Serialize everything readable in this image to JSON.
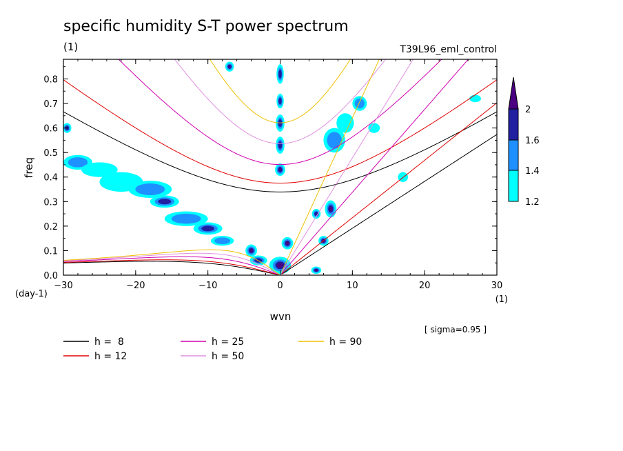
{
  "chart_data": {
    "type": "heatmap",
    "title": "specific humidity S-T power spectrum",
    "subtitle_left": "(1)",
    "subtitle_right": "T39L96_eml_control",
    "xlabel": "wvn",
    "ylabel": "freq",
    "x_unit_label": "(1)",
    "y_unit_label": "(day-1)",
    "annotation": "[ sigma=0.95 ]",
    "xlim": [
      -30,
      30
    ],
    "ylim": [
      0,
      0.88
    ],
    "x_ticks": [
      -30,
      -20,
      -10,
      0,
      10,
      20,
      30
    ],
    "y_ticks": [
      0.0,
      0.1,
      0.2,
      0.3,
      0.4,
      0.5,
      0.6,
      0.7,
      0.8
    ],
    "x_tick_labels": [
      "−30",
      "−20",
      "−10",
      "0",
      "10",
      "20",
      "30"
    ],
    "y_tick_labels": [
      "0.0",
      "0.1",
      "0.2",
      "0.3",
      "0.4",
      "0.5",
      "0.6",
      "0.7",
      "0.8"
    ],
    "colorbar": {
      "levels": [
        1.2,
        1.4,
        1.6,
        2
      ],
      "level_labels": [
        "1.2",
        "1.4",
        "1.6",
        "2"
      ],
      "colors": [
        "#00ffff",
        "#1e90ff",
        "#2020a0",
        "#4b0082"
      ]
    },
    "blobs": [
      {
        "x": -29.5,
        "y": 0.6,
        "rx": 0.6,
        "ry": 0.02,
        "level": 2
      },
      {
        "x": -28,
        "y": 0.46,
        "rx": 2.0,
        "ry": 0.03,
        "level": 1
      },
      {
        "x": -25,
        "y": 0.43,
        "rx": 2.5,
        "ry": 0.03,
        "level": 0
      },
      {
        "x": -22,
        "y": 0.38,
        "rx": 3.0,
        "ry": 0.04,
        "level": 0
      },
      {
        "x": -18,
        "y": 0.35,
        "rx": 3.0,
        "ry": 0.035,
        "level": 1
      },
      {
        "x": -16,
        "y": 0.3,
        "rx": 2.0,
        "ry": 0.025,
        "level": 2
      },
      {
        "x": -13,
        "y": 0.23,
        "rx": 3.0,
        "ry": 0.03,
        "level": 1
      },
      {
        "x": -10,
        "y": 0.19,
        "rx": 2.0,
        "ry": 0.025,
        "level": 2
      },
      {
        "x": -8,
        "y": 0.14,
        "rx": 1.6,
        "ry": 0.02,
        "level": 1
      },
      {
        "x": -7,
        "y": 0.85,
        "rx": 0.6,
        "ry": 0.02,
        "level": 3
      },
      {
        "x": -4,
        "y": 0.1,
        "rx": 0.8,
        "ry": 0.025,
        "level": 3
      },
      {
        "x": -3,
        "y": 0.06,
        "rx": 1.2,
        "ry": 0.02,
        "level": 2
      },
      {
        "x": 0,
        "y": 0.82,
        "rx": 0.5,
        "ry": 0.04,
        "level": 2
      },
      {
        "x": 0,
        "y": 0.71,
        "rx": 0.5,
        "ry": 0.03,
        "level": 2
      },
      {
        "x": 0,
        "y": 0.62,
        "rx": 0.6,
        "ry": 0.035,
        "level": 2
      },
      {
        "x": 0,
        "y": 0.53,
        "rx": 0.6,
        "ry": 0.035,
        "level": 2
      },
      {
        "x": 0,
        "y": 0.43,
        "rx": 0.7,
        "ry": 0.025,
        "level": 3
      },
      {
        "x": 1,
        "y": 0.13,
        "rx": 0.8,
        "ry": 0.025,
        "level": 3
      },
      {
        "x": 0,
        "y": 0.04,
        "rx": 1.5,
        "ry": 0.035,
        "level": 3
      },
      {
        "x": 5,
        "y": 0.02,
        "rx": 0.7,
        "ry": 0.015,
        "level": 3
      },
      {
        "x": 5,
        "y": 0.25,
        "rx": 0.6,
        "ry": 0.02,
        "level": 2
      },
      {
        "x": 6,
        "y": 0.14,
        "rx": 0.7,
        "ry": 0.02,
        "level": 3
      },
      {
        "x": 7,
        "y": 0.27,
        "rx": 0.8,
        "ry": 0.035,
        "level": 3
      },
      {
        "x": 7.5,
        "y": 0.55,
        "rx": 1.5,
        "ry": 0.05,
        "level": 1
      },
      {
        "x": 9,
        "y": 0.62,
        "rx": 1.2,
        "ry": 0.04,
        "level": 0
      },
      {
        "x": 11,
        "y": 0.7,
        "rx": 1.0,
        "ry": 0.03,
        "level": 1
      },
      {
        "x": 13,
        "y": 0.6,
        "rx": 0.8,
        "ry": 0.02,
        "level": 0
      },
      {
        "x": 17,
        "y": 0.4,
        "rx": 0.7,
        "ry": 0.02,
        "level": 0
      },
      {
        "x": 27,
        "y": 0.72,
        "rx": 0.8,
        "ry": 0.015,
        "level": 0
      }
    ],
    "series": [
      {
        "name": "h =  8",
        "h": 8,
        "color": "#000000"
      },
      {
        "name": "h = 12",
        "h": 12,
        "color": "#e00000"
      },
      {
        "name": "h = 25",
        "h": 25,
        "color": "#d000b0"
      },
      {
        "name": "h = 50",
        "h": 50,
        "color": "#e090e0"
      },
      {
        "name": "h = 90",
        "h": 90,
        "color": "#f0c000"
      }
    ]
  }
}
